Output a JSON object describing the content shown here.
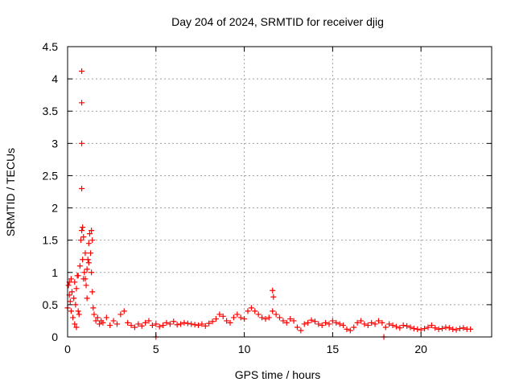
{
  "chart_data": {
    "type": "scatter",
    "title": "Day 204 of 2024, SRMTID for receiver djig",
    "xlabel": "GPS time / hours",
    "ylabel": "SRMTID / TECUs",
    "xlim": [
      0,
      24
    ],
    "ylim": [
      0,
      4.5
    ],
    "xticks": [
      0,
      5,
      10,
      15,
      20
    ],
    "yticks": [
      0,
      0.5,
      1,
      1.5,
      2,
      2.5,
      3,
      3.5,
      4,
      4.5
    ],
    "xtick_labels": [
      "0",
      "5",
      "10",
      "15",
      "20"
    ],
    "ytick_labels": [
      "0",
      "0.5",
      "1",
      "1.5",
      "2",
      "2.5",
      "3",
      "3.5",
      "4",
      "4.5"
    ],
    "grid": true,
    "marker": "+",
    "series": [
      {
        "name": "SRMTID",
        "color": "#ff0000",
        "x": [
          0.0,
          0.05,
          0.1,
          0.15,
          0.2,
          0.25,
          0.3,
          0.35,
          0.4,
          0.45,
          0.5,
          0.55,
          0.6,
          0.65,
          0.7,
          0.75,
          0.8,
          0.85,
          0.9,
          0.95,
          1.0,
          1.05,
          1.1,
          1.15,
          1.2,
          1.25,
          1.3,
          1.35,
          1.4,
          1.45,
          1.5,
          1.6,
          1.7,
          1.8,
          1.9,
          2.0,
          2.2,
          2.4,
          2.6,
          2.8,
          3.0,
          3.2,
          3.4,
          3.6,
          3.8,
          4.0,
          4.2,
          4.4,
          4.6,
          4.8,
          5.0,
          5.2,
          5.4,
          5.6,
          5.8,
          6.0,
          6.2,
          6.4,
          6.6,
          6.8,
          7.0,
          7.2,
          7.4,
          7.6,
          7.8,
          8.0,
          8.2,
          8.4,
          8.6,
          8.8,
          9.0,
          9.2,
          9.4,
          9.6,
          9.8,
          10.0,
          10.2,
          10.4,
          10.6,
          10.8,
          11.0,
          11.2,
          11.4,
          11.6,
          11.8,
          12.0,
          12.2,
          12.4,
          12.6,
          12.8,
          13.0,
          13.2,
          13.4,
          13.6,
          13.8,
          14.0,
          14.2,
          14.4,
          14.6,
          14.8,
          15.0,
          15.2,
          15.4,
          15.6,
          15.8,
          16.0,
          16.2,
          16.4,
          16.6,
          16.8,
          17.0,
          17.2,
          17.4,
          17.6,
          17.8,
          18.0,
          18.2,
          18.4,
          18.6,
          18.8,
          19.0,
          19.2,
          19.4,
          19.6,
          19.8,
          20.0,
          20.2,
          20.4,
          20.6,
          20.8,
          21.0,
          21.2,
          21.4,
          21.6,
          21.8,
          22.0,
          22.2,
          22.4,
          22.6,
          22.8,
          0.8,
          0.8,
          0.8,
          0.8,
          0.85,
          0.9,
          1.35,
          1.4,
          5.0,
          17.9,
          11.6,
          11.65,
          0.1,
          0.2,
          0.4,
          0.5,
          0.6,
          1.0,
          1.1,
          1.2
        ],
        "y": [
          0.45,
          0.8,
          0.65,
          0.55,
          0.4,
          0.7,
          0.3,
          0.6,
          0.85,
          0.5,
          0.75,
          0.95,
          0.4,
          0.35,
          1.1,
          1.5,
          1.65,
          1.2,
          0.9,
          1.0,
          1.3,
          0.8,
          0.6,
          1.2,
          1.45,
          1.6,
          1.3,
          1.0,
          0.7,
          0.45,
          0.35,
          0.25,
          0.3,
          0.2,
          0.25,
          0.22,
          0.3,
          0.18,
          0.25,
          0.2,
          0.35,
          0.4,
          0.22,
          0.18,
          0.15,
          0.2,
          0.17,
          0.22,
          0.25,
          0.18,
          0.2,
          0.16,
          0.18,
          0.22,
          0.2,
          0.24,
          0.19,
          0.2,
          0.22,
          0.21,
          0.2,
          0.19,
          0.18,
          0.2,
          0.17,
          0.21,
          0.24,
          0.28,
          0.35,
          0.32,
          0.25,
          0.22,
          0.3,
          0.35,
          0.3,
          0.28,
          0.4,
          0.45,
          0.4,
          0.35,
          0.3,
          0.28,
          0.3,
          0.4,
          0.35,
          0.3,
          0.25,
          0.22,
          0.28,
          0.25,
          0.15,
          0.1,
          0.2,
          0.22,
          0.26,
          0.24,
          0.2,
          0.18,
          0.22,
          0.2,
          0.25,
          0.22,
          0.2,
          0.18,
          0.12,
          0.1,
          0.15,
          0.22,
          0.25,
          0.2,
          0.18,
          0.22,
          0.2,
          0.25,
          0.22,
          0.15,
          0.2,
          0.18,
          0.16,
          0.14,
          0.18,
          0.17,
          0.15,
          0.13,
          0.12,
          0.11,
          0.13,
          0.15,
          0.18,
          0.14,
          0.12,
          0.13,
          0.15,
          0.14,
          0.12,
          0.11,
          0.13,
          0.14,
          0.12,
          0.12,
          4.12,
          3.63,
          3.0,
          2.3,
          1.7,
          1.55,
          1.65,
          1.5,
          0.0,
          0.0,
          0.72,
          0.62,
          0.85,
          0.9,
          0.2,
          0.15,
          0.95,
          0.9,
          1.05,
          1.15
        ]
      }
    ]
  }
}
